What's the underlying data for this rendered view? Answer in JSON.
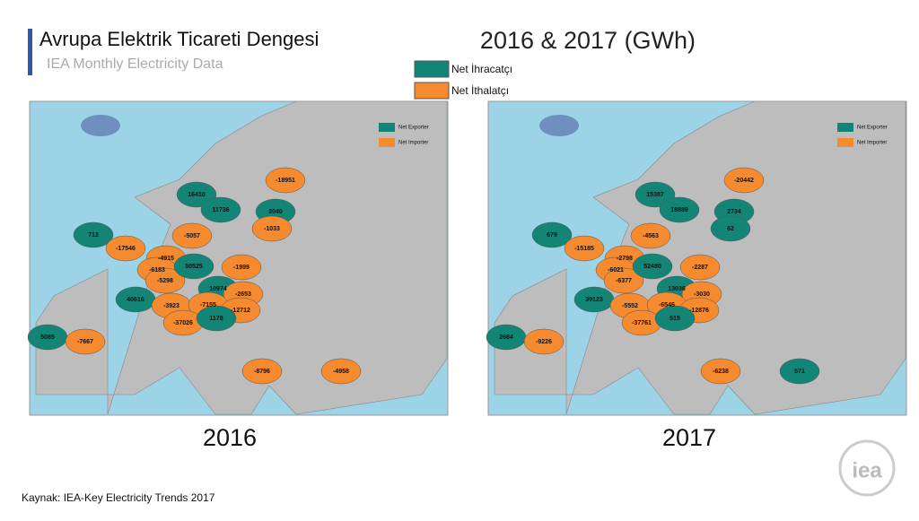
{
  "header": {
    "title": "Avrupa Elektrik Ticareti Dengesi",
    "subtitle": "IEA Monthly Electricity Data",
    "headline": "2016 & 2017 (GWh)"
  },
  "legend": [
    {
      "label": "Net İhracatçı",
      "color": "#138577"
    },
    {
      "label": "Net İthalatçı",
      "color": "#f58a2e"
    }
  ],
  "maps": [
    {
      "year": "2016",
      "legend": [
        "Net Exporter",
        "Net Importer"
      ],
      "values": [
        16410,
        11736,
        -18951,
        2040,
        -1033,
        712,
        -17546,
        -5057,
        -4915,
        -6183,
        -5298,
        50525,
        -1999,
        40616,
        10974,
        -2653,
        -3923,
        -7155,
        -12712,
        -37026,
        1178,
        5085,
        -7667,
        -8796,
        -4958
      ]
    },
    {
      "year": "2017",
      "legend": [
        "Net Exporter",
        "Net Importer"
      ],
      "values": [
        15387,
        18889,
        -20442,
        2734,
        62,
        679,
        -15185,
        -4563,
        -2798,
        -6021,
        -6377,
        52480,
        -2287,
        39123,
        13036,
        -3030,
        -5552,
        -6546,
        -12876,
        -37761,
        515,
        2684,
        -9226,
        -6238,
        571
      ]
    }
  ],
  "source": "Kaynak: IEA-Key Electricity Trends 2017",
  "logo": "iea"
}
